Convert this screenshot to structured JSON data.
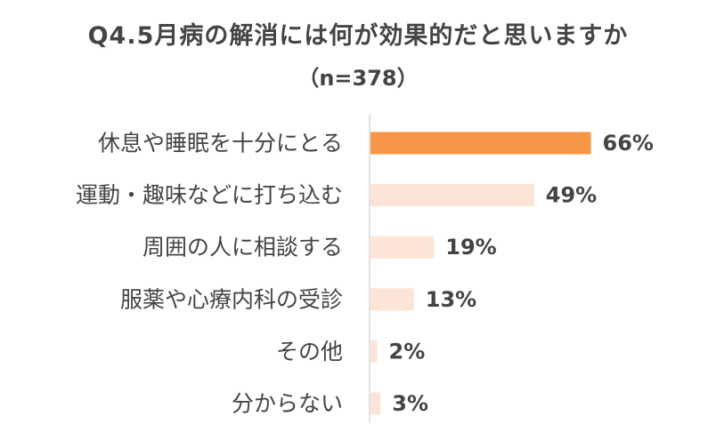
{
  "chart_data": {
    "type": "bar",
    "orientation": "horizontal",
    "title": "Q4.5月病の解消には何が効果的だと思いますか",
    "subtitle": "（n=378）",
    "categories": [
      "休息や睡眠を十分にとる",
      "運動・趣味などに打ち込む",
      "周囲の人に相談する",
      "服薬や心療内科の受診",
      "その他",
      "分からない"
    ],
    "values": [
      66,
      49,
      19,
      13,
      2,
      3
    ],
    "data_labels": [
      "66%",
      "49%",
      "19%",
      "13%",
      "2%",
      "3%"
    ],
    "xlim": [
      0,
      100
    ],
    "unit": "%",
    "grid": false,
    "legend": "none",
    "colors": {
      "highlight": "#F79646",
      "default": "#FCE4D6",
      "axis": "#D9D9D9",
      "text": "#444444"
    }
  }
}
